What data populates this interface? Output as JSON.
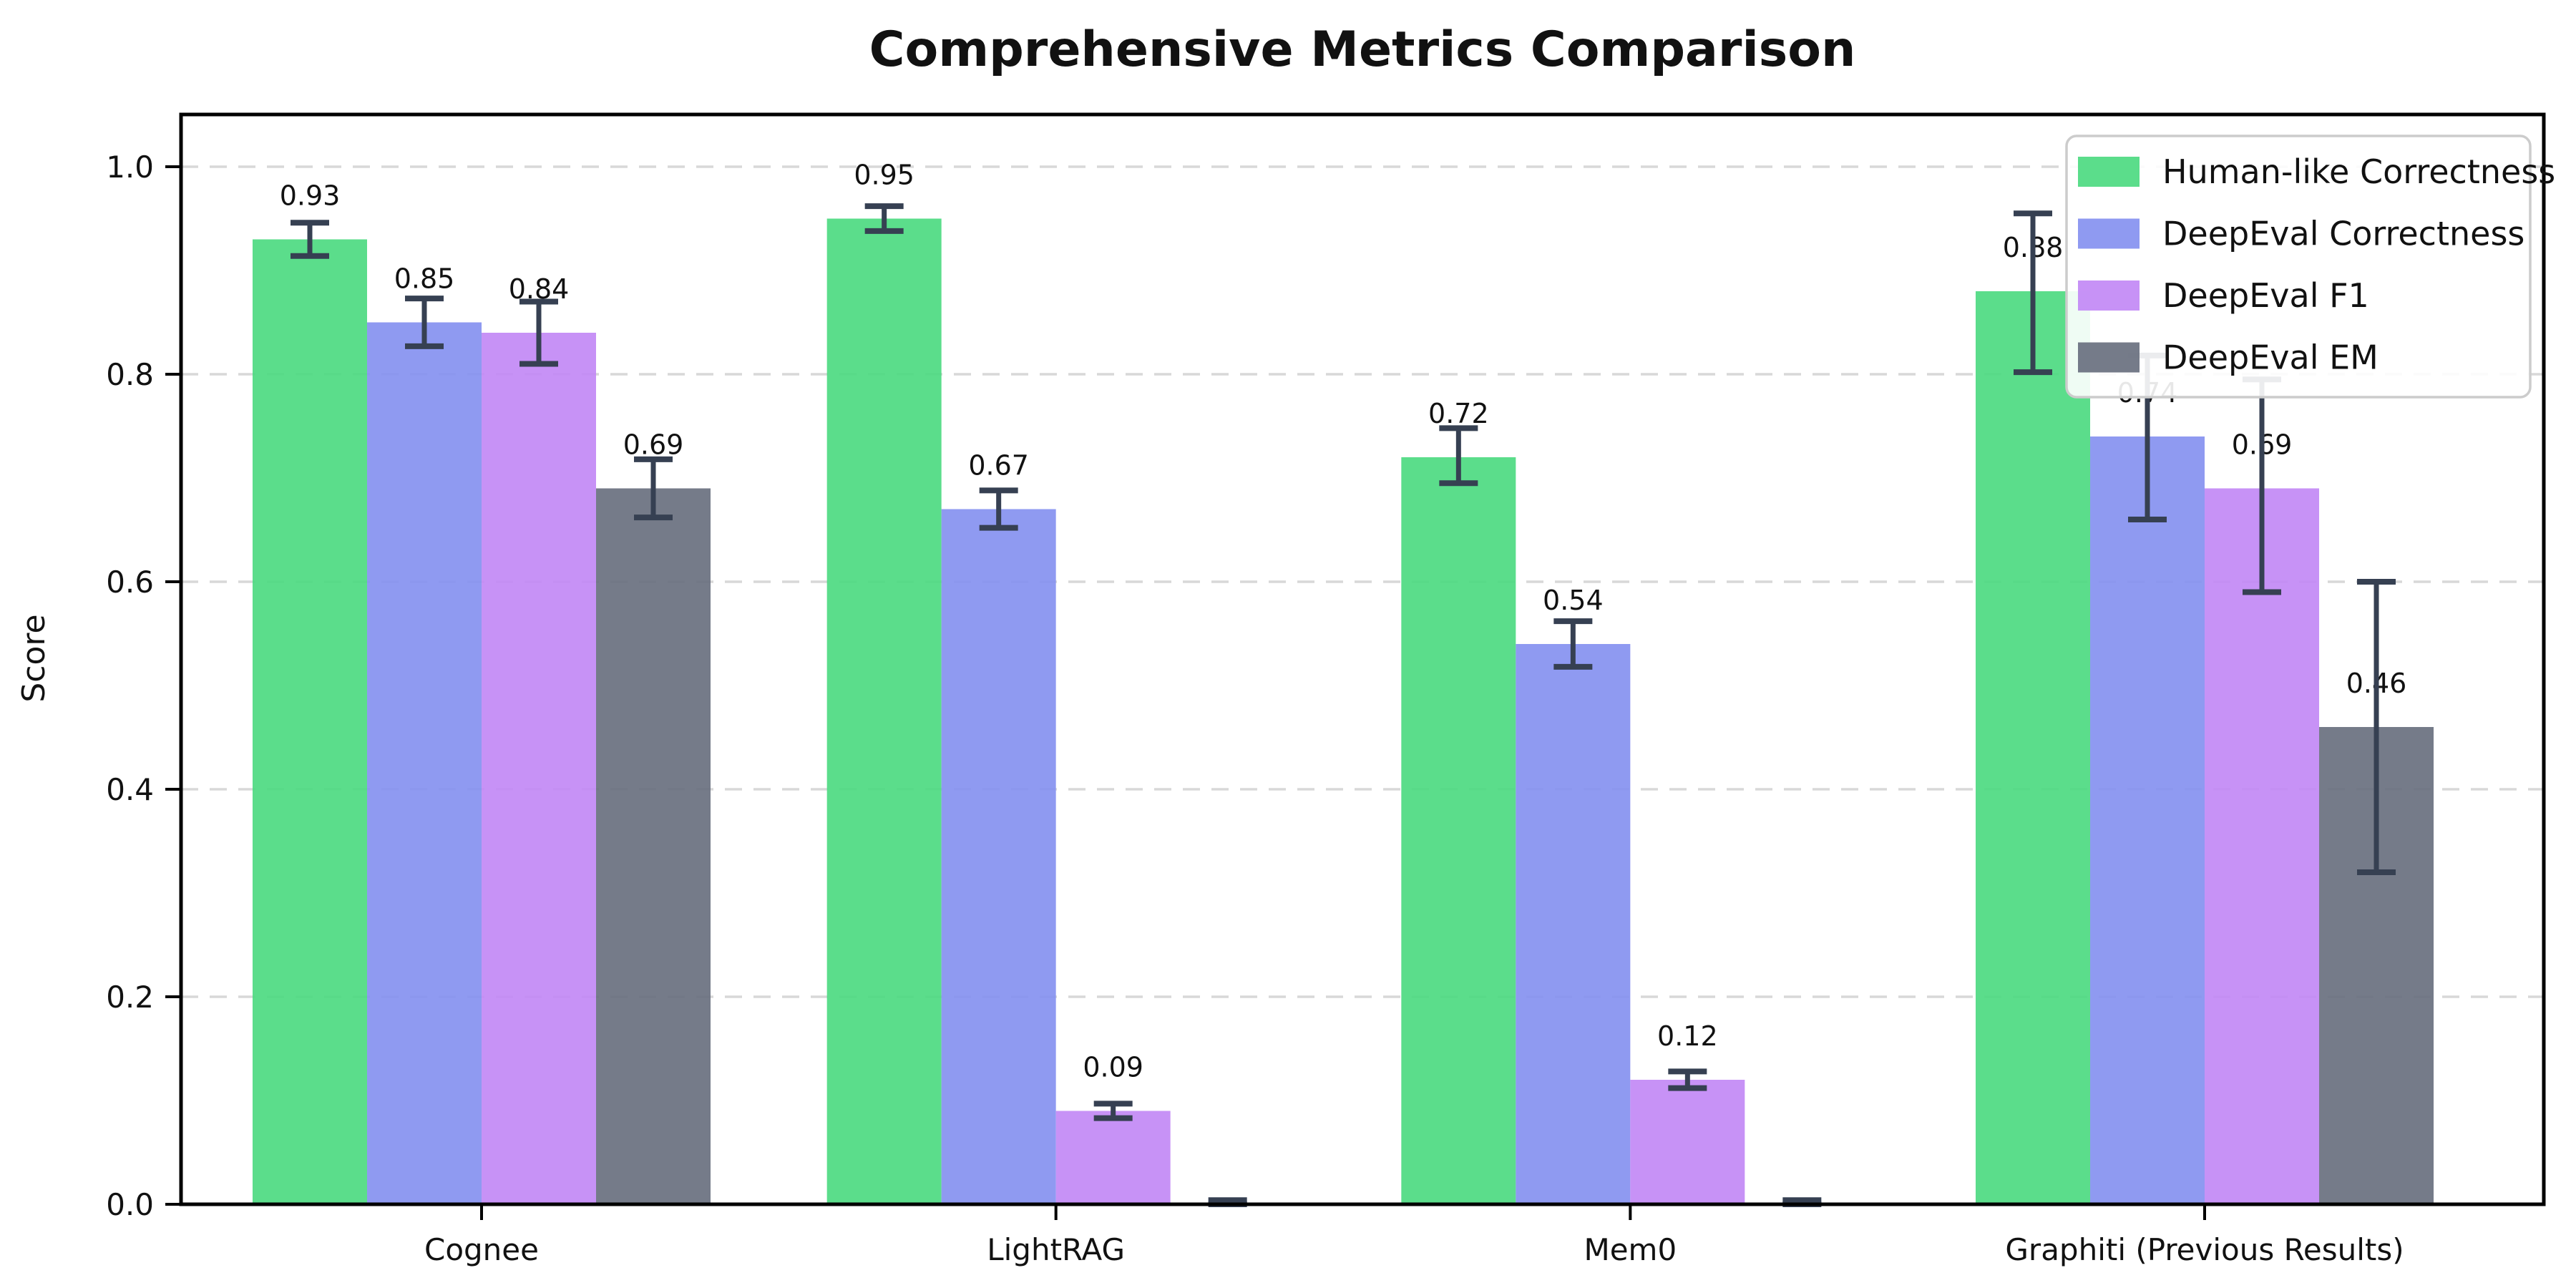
{
  "chart_data": {
    "type": "bar",
    "title": "Comprehensive Metrics Comparison",
    "xlabel": "",
    "ylabel": "Score",
    "categories": [
      "Cognee",
      "LightRAG",
      "Mem0",
      "Graphiti (Previous Results)"
    ],
    "yticks": [
      "0.0",
      "0.2",
      "0.4",
      "0.6",
      "0.8",
      "1.0"
    ],
    "ylim": [
      0.0,
      1.05
    ],
    "grid": "horizontal-dashed",
    "legend_position": "upper-right",
    "error_bars": true,
    "series": [
      {
        "name": "Human-like Correctness",
        "color": "#4dda81",
        "values": [
          0.93,
          0.95,
          0.72,
          0.88
        ],
        "labels": [
          "0.93",
          "0.95",
          "0.72",
          "0.88"
        ],
        "err_low": [
          0.914,
          0.938,
          0.695,
          0.802
        ],
        "err_high": [
          0.946,
          0.962,
          0.748,
          0.955
        ]
      },
      {
        "name": "DeepEval Correctness",
        "color": "#8591f0",
        "values": [
          0.85,
          0.67,
          0.54,
          0.74
        ],
        "labels": [
          "0.85",
          "0.67",
          "0.54",
          "0.74"
        ],
        "err_low": [
          0.827,
          0.652,
          0.518,
          0.66
        ],
        "err_high": [
          0.873,
          0.688,
          0.562,
          0.818
        ]
      },
      {
        "name": "DeepEval F1",
        "color": "#c289f5",
        "values": [
          0.84,
          0.09,
          0.12,
          0.69
        ],
        "labels": [
          "0.84",
          "0.09",
          "0.12",
          "0.69"
        ],
        "err_low": [
          0.81,
          0.083,
          0.112,
          0.59
        ],
        "err_high": [
          0.87,
          0.097,
          0.128,
          0.795
        ]
      },
      {
        "name": "DeepEval EM",
        "color": "#69707f",
        "values": [
          0.69,
          0.0,
          0.0,
          0.46
        ],
        "labels": [
          "0.69",
          "",
          "",
          "0.46"
        ],
        "err_low": [
          0.662,
          0.0,
          0.0,
          0.32
        ],
        "err_high": [
          0.718,
          0.004,
          0.004,
          0.6
        ]
      }
    ],
    "colors": {
      "background": "#ffffff",
      "axis": "#000000",
      "grid": "#d8d8d8",
      "error_bar": "#364052",
      "text": "#111111",
      "legend_border": "#cccccc"
    }
  }
}
